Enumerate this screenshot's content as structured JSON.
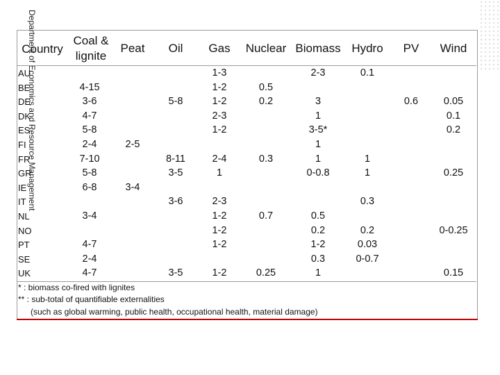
{
  "vertical_label": "Department of Economics and Resource Management",
  "columns": [
    "Country",
    "Coal & lignite",
    "Peat",
    "Oil",
    "Gas",
    "Nuclear",
    "Biomass",
    "Hydro",
    "PV",
    "Wind"
  ],
  "rows": [
    {
      "country": "AU",
      "coal": "",
      "peat": "",
      "oil": "",
      "gas": "1-3",
      "nuclear": "",
      "biomass": "2-3",
      "hydro": "0.1",
      "pv": "",
      "wind": ""
    },
    {
      "country": "BE",
      "coal": "4-15",
      "peat": "",
      "oil": "",
      "gas": "1-2",
      "nuclear": "0.5",
      "biomass": "",
      "hydro": "",
      "pv": "",
      "wind": ""
    },
    {
      "country": "DE",
      "coal": "3-6",
      "peat": "",
      "oil": "5-8",
      "gas": "1-2",
      "nuclear": "0.2",
      "biomass": "3",
      "hydro": "",
      "pv": "0.6",
      "wind": "0.05"
    },
    {
      "country": "DK",
      "coal": "4-7",
      "peat": "",
      "oil": "",
      "gas": "2-3",
      "nuclear": "",
      "biomass": "1",
      "hydro": "",
      "pv": "",
      "wind": "0.1"
    },
    {
      "country": "ES",
      "coal": "5-8",
      "peat": "",
      "oil": "",
      "gas": "1-2",
      "nuclear": "",
      "biomass": "3-5*",
      "hydro": "",
      "pv": "",
      "wind": "0.2"
    },
    {
      "country": "FI",
      "coal": "2-4",
      "peat": "2-5",
      "oil": "",
      "gas": "",
      "nuclear": "",
      "biomass": "1",
      "hydro": "",
      "pv": "",
      "wind": ""
    },
    {
      "country": "FR",
      "coal": "7-10",
      "peat": "",
      "oil": "8-11",
      "gas": "2-4",
      "nuclear": "0.3",
      "biomass": "1",
      "hydro": "1",
      "pv": "",
      "wind": ""
    },
    {
      "country": "GR",
      "coal": "5-8",
      "peat": "",
      "oil": "3-5",
      "gas": "1",
      "nuclear": "",
      "biomass": "0-0.8",
      "hydro": "1",
      "pv": "",
      "wind": "0.25"
    },
    {
      "country": "IE",
      "coal": "6-8",
      "peat": "3-4",
      "oil": "",
      "gas": "",
      "nuclear": "",
      "biomass": "",
      "hydro": "",
      "pv": "",
      "wind": ""
    },
    {
      "country": "IT",
      "coal": "",
      "peat": "",
      "oil": "3-6",
      "gas": "2-3",
      "nuclear": "",
      "biomass": "",
      "hydro": "0.3",
      "pv": "",
      "wind": ""
    },
    {
      "country": "NL",
      "coal": "3-4",
      "peat": "",
      "oil": "",
      "gas": "1-2",
      "nuclear": "0.7",
      "biomass": "0.5",
      "hydro": "",
      "pv": "",
      "wind": ""
    },
    {
      "country": "NO",
      "coal": "",
      "peat": "",
      "oil": "",
      "gas": "1-2",
      "nuclear": "",
      "biomass": "0.2",
      "hydro": "0.2",
      "pv": "",
      "wind": "0-0.25"
    },
    {
      "country": "PT",
      "coal": "4-7",
      "peat": "",
      "oil": "",
      "gas": "1-2",
      "nuclear": "",
      "biomass": "1-2",
      "hydro": "0.03",
      "pv": "",
      "wind": ""
    },
    {
      "country": "SE",
      "coal": "2-4",
      "peat": "",
      "oil": "",
      "gas": "",
      "nuclear": "",
      "biomass": "0.3",
      "hydro": "0-0.7",
      "pv": "",
      "wind": ""
    },
    {
      "country": "UK",
      "coal": "4-7",
      "peat": "",
      "oil": "3-5",
      "gas": "1-2",
      "nuclear": "0.25",
      "biomass": "1",
      "hydro": "",
      "pv": "",
      "wind": "0.15"
    }
  ],
  "footnotes": [
    "* : biomass co-fired with lignites",
    "** : sub-total of quantifiable externalities",
    "(such as global warming, public health, occupational health, material damage)"
  ]
}
